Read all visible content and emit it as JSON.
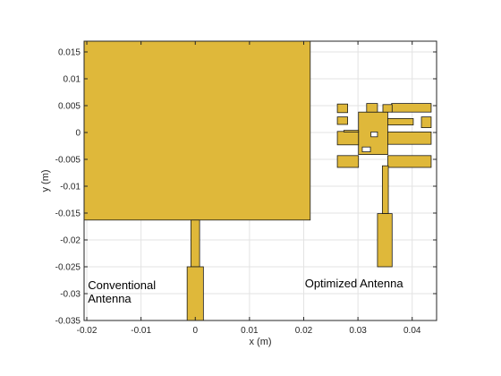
{
  "chart_data": {
    "type": "geometry",
    "xlabel": "x (m)",
    "ylabel": "y (m)",
    "xlim": [
      -0.0205,
      0.0445
    ],
    "ylim": [
      -0.035,
      0.017
    ],
    "xticks": [
      -0.02,
      -0.01,
      0,
      0.01,
      0.02,
      0.03,
      0.04
    ],
    "xtick_labels": [
      "-0.02",
      "-0.01",
      "0",
      "0.01",
      "0.02",
      "0.03",
      "0.04"
    ],
    "yticks": [
      0.015,
      0.01,
      0.005,
      0,
      -0.005,
      -0.01,
      -0.015,
      -0.02,
      -0.025,
      -0.03,
      -0.035
    ],
    "ytick_labels": [
      "0.015",
      "0.01",
      "0.005",
      "0",
      "-0.005",
      "-0.01",
      "-0.015",
      "-0.02",
      "-0.025",
      "-0.03",
      "-0.035"
    ],
    "grid": true,
    "fill_color": "#dfb83a",
    "edge_color": "#1a1a1a",
    "annotations": [
      {
        "lines": [
          "Conventional",
          "Antenna"
        ],
        "x": -0.0198,
        "y": -0.0292
      },
      {
        "lines": [
          "Optimized Antenna"
        ],
        "x": 0.0202,
        "y": -0.0288
      }
    ],
    "shapes": [
      {
        "name": "conventional-patch",
        "x1": -0.0207,
        "y1": -0.0163,
        "x2": 0.0212,
        "y2": 0.0175
      },
      {
        "name": "conventional-feed-narrow",
        "x1": -0.0008,
        "y1": -0.025,
        "x2": 0.0008,
        "y2": -0.0163
      },
      {
        "name": "conventional-feed-wide",
        "x1": -0.0015,
        "y1": -0.0358,
        "x2": 0.0015,
        "y2": -0.025
      },
      {
        "name": "optimized-block-main",
        "x1": 0.0301,
        "y1": -0.0041,
        "x2": 0.0355,
        "y2": 0.0038
      },
      {
        "name": "optimized-block-left-a",
        "x1": 0.0262,
        "y1": -0.0065,
        "x2": 0.0301,
        "y2": -0.0043
      },
      {
        "name": "optimized-block-left-b",
        "x1": 0.0262,
        "y1": -0.0023,
        "x2": 0.0301,
        "y2": 0.0002
      },
      {
        "name": "optimized-block-left-c",
        "x1": 0.0274,
        "y1": 0.0001,
        "x2": 0.0301,
        "y2": 0.0004
      },
      {
        "name": "optimized-block-right-a",
        "x1": 0.0355,
        "y1": -0.0065,
        "x2": 0.0435,
        "y2": -0.0043
      },
      {
        "name": "optimized-block-right-b",
        "x1": 0.0355,
        "y1": -0.0022,
        "x2": 0.0435,
        "y2": 0.0001
      },
      {
        "name": "optimized-block-right-c",
        "x1": 0.0355,
        "y1": 0.0014,
        "x2": 0.0402,
        "y2": 0.0026
      },
      {
        "name": "optimized-block-right-d",
        "x1": 0.0362,
        "y1": 0.0038,
        "x2": 0.0435,
        "y2": 0.0054
      },
      {
        "name": "optimized-block-top-a",
        "x1": 0.0316,
        "y1": 0.0038,
        "x2": 0.0336,
        "y2": 0.0054
      },
      {
        "name": "optimized-block-top-b",
        "x1": 0.0346,
        "y1": 0.0038,
        "x2": 0.0363,
        "y2": 0.0052
      },
      {
        "name": "optimized-square-tl",
        "x1": 0.0262,
        "y1": 0.0037,
        "x2": 0.0281,
        "y2": 0.0053
      },
      {
        "name": "optimized-square-ml",
        "x1": 0.0262,
        "y1": 0.0015,
        "x2": 0.0281,
        "y2": 0.0029
      },
      {
        "name": "optimized-square-r",
        "x1": 0.0417,
        "y1": 0.0009,
        "x2": 0.0435,
        "y2": 0.0029
      },
      {
        "name": "optimized-feed-narrow",
        "x1": 0.0345,
        "y1": -0.0151,
        "x2": 0.0356,
        "y2": -0.0062
      },
      {
        "name": "optimized-feed-wide",
        "x1": 0.0336,
        "y1": -0.025,
        "x2": 0.0363,
        "y2": -0.0151
      }
    ],
    "holes": [
      {
        "name": "optimized-hole-a",
        "x1": 0.0324,
        "y1": -0.0008,
        "x2": 0.0336,
        "y2": 0.0001
      },
      {
        "name": "optimized-hole-b",
        "x1": 0.0308,
        "y1": -0.0036,
        "x2": 0.0323,
        "y2": -0.0027
      }
    ]
  }
}
